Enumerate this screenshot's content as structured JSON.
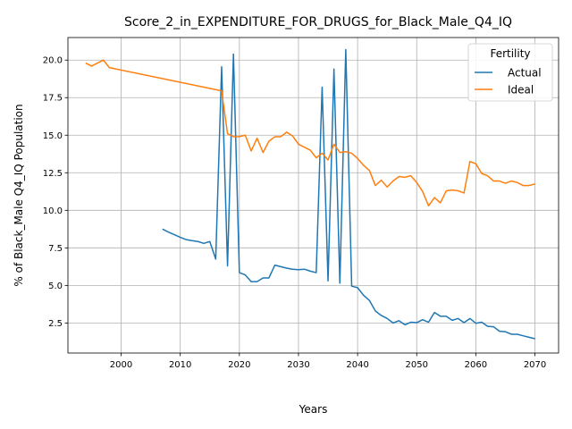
{
  "chart_data": {
    "type": "line",
    "title": "Score_2_in_EXPENDITURE_FOR_DRUGS_for_Black_Male_Q4_IQ",
    "xlabel": "Years",
    "ylabel": "% of Black_Male Q4_IQ Population",
    "xlim": [
      1991,
      2074
    ],
    "ylim": [
      0.5,
      21.5
    ],
    "xticks": [
      2000,
      2010,
      2020,
      2030,
      2040,
      2050,
      2060,
      2070
    ],
    "yticks": [
      2.5,
      5.0,
      7.5,
      10.0,
      12.5,
      15.0,
      17.5,
      20.0
    ],
    "xtick_labels": [
      "2000",
      "2010",
      "2020",
      "2030",
      "2040",
      "2050",
      "2060",
      "2070"
    ],
    "ytick_labels": [
      "2.5",
      "5.0",
      "7.5",
      "10.0",
      "12.5",
      "15.0",
      "17.5",
      "20.0"
    ],
    "grid": true,
    "legend": {
      "title": "Fertility",
      "position": "top-right"
    },
    "series": [
      {
        "name": "Actual",
        "color": "#1f77b4",
        "x": [
          2007,
          2008,
          2009,
          2010,
          2011,
          2012,
          2013,
          2014,
          2015,
          2016,
          2017,
          2018,
          2019,
          2020,
          2021,
          2022,
          2023,
          2024,
          2025,
          2026,
          2027,
          2028,
          2029,
          2030,
          2031,
          2032,
          2033,
          2034,
          2035,
          2036,
          2037,
          2038,
          2039,
          2040,
          2041,
          2042,
          2043,
          2044,
          2045,
          2046,
          2047,
          2048,
          2049,
          2050,
          2051,
          2052,
          2053,
          2054,
          2055,
          2056,
          2057,
          2058,
          2059,
          2060,
          2061,
          2062,
          2063,
          2064,
          2065,
          2066,
          2067,
          2068,
          2069,
          2070
        ],
        "y": [
          8.75,
          8.55,
          8.38,
          8.2,
          8.05,
          7.98,
          7.92,
          7.8,
          7.92,
          6.75,
          19.55,
          6.3,
          20.4,
          5.85,
          5.7,
          5.25,
          5.25,
          5.5,
          5.5,
          6.35,
          6.25,
          6.15,
          6.08,
          6.05,
          6.08,
          5.95,
          5.85,
          18.2,
          5.3,
          19.4,
          5.15,
          20.7,
          4.95,
          4.85,
          4.35,
          4.0,
          3.3,
          3.0,
          2.8,
          2.5,
          2.65,
          2.38,
          2.55,
          2.52,
          2.72,
          2.55,
          3.2,
          2.95,
          2.95,
          2.68,
          2.8,
          2.52,
          2.8,
          2.48,
          2.55,
          2.28,
          2.25,
          1.95,
          1.92,
          1.75,
          1.75,
          1.65,
          1.55,
          1.45
        ]
      },
      {
        "name": "Ideal",
        "color": "#ff7f0e",
        "x": [
          1994,
          1995,
          1996,
          1997,
          1998,
          2017,
          2018,
          2019,
          2020,
          2021,
          2022,
          2023,
          2024,
          2025,
          2026,
          2027,
          2028,
          2029,
          2030,
          2031,
          2032,
          2033,
          2034,
          2035,
          2036,
          2037,
          2038,
          2039,
          2040,
          2041,
          2042,
          2043,
          2044,
          2045,
          2046,
          2047,
          2048,
          2049,
          2050,
          2051,
          2052,
          2053,
          2054,
          2055,
          2056,
          2057,
          2058,
          2059,
          2060,
          2061,
          2062,
          2063,
          2064,
          2065,
          2066,
          2067,
          2068,
          2069,
          2070
        ],
        "y": [
          19.8,
          19.6,
          19.8,
          20.0,
          19.5,
          17.95,
          15.1,
          14.9,
          14.9,
          15.0,
          13.95,
          14.8,
          13.85,
          14.6,
          14.9,
          14.9,
          15.2,
          14.95,
          14.4,
          14.2,
          14.0,
          13.5,
          13.8,
          13.35,
          14.4,
          13.85,
          13.9,
          13.8,
          13.45,
          13.0,
          12.65,
          11.65,
          12.0,
          11.55,
          11.95,
          12.25,
          12.2,
          12.3,
          11.85,
          11.25,
          10.3,
          10.85,
          10.5,
          11.3,
          11.35,
          11.3,
          11.15,
          13.25,
          13.1,
          12.45,
          12.3,
          11.95,
          11.95,
          11.8,
          11.95,
          11.85,
          11.65,
          11.65,
          11.75
        ]
      }
    ]
  }
}
